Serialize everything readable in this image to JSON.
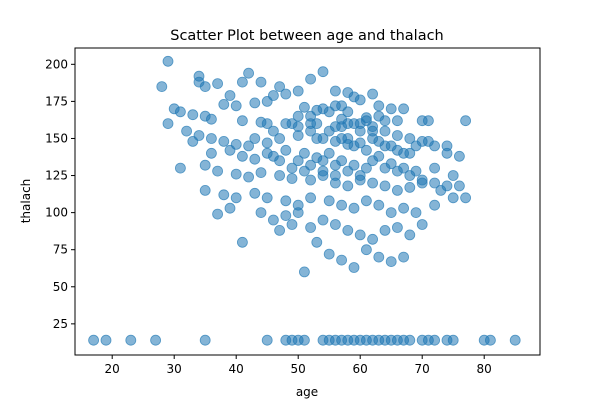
{
  "chart_data": {
    "type": "scatter",
    "title": "Scatter Plot between age and thalach",
    "xlabel": "age",
    "ylabel": "thalach",
    "xlim": [
      14,
      89
    ],
    "ylim": [
      4,
      211
    ],
    "xticks": [
      20,
      30,
      40,
      50,
      60,
      70,
      80
    ],
    "yticks": [
      25,
      50,
      75,
      100,
      125,
      150,
      175,
      200
    ],
    "grid": false,
    "marker_color": "#1f77b4",
    "marker_alpha": 0.55,
    "series": [
      {
        "points": [
          [
            29,
            202
          ],
          [
            42,
            194
          ],
          [
            54,
            195
          ],
          [
            28,
            185
          ],
          [
            34,
            192
          ],
          [
            34,
            188
          ],
          [
            35,
            185
          ],
          [
            37,
            187
          ],
          [
            41,
            188
          ],
          [
            44,
            188
          ],
          [
            47,
            185
          ],
          [
            52,
            190
          ],
          [
            45,
            175
          ],
          [
            46,
            179
          ],
          [
            48,
            180
          ],
          [
            50,
            182
          ],
          [
            56,
            182
          ],
          [
            58,
            181
          ],
          [
            59,
            178
          ],
          [
            60,
            176
          ],
          [
            62,
            180
          ],
          [
            63,
            172
          ],
          [
            65,
            170
          ],
          [
            67,
            170
          ],
          [
            38,
            173
          ],
          [
            39,
            179
          ],
          [
            40,
            172
          ],
          [
            43,
            174
          ],
          [
            51,
            171
          ],
          [
            53,
            169
          ],
          [
            55,
            168
          ],
          [
            57,
            172
          ],
          [
            30,
            170
          ],
          [
            31,
            168
          ],
          [
            33,
            166
          ],
          [
            35,
            165
          ],
          [
            36,
            163
          ],
          [
            41,
            162
          ],
          [
            44,
            161
          ],
          [
            49,
            160
          ],
          [
            53,
            160
          ],
          [
            57,
            163
          ],
          [
            61,
            164
          ],
          [
            64,
            162
          ],
          [
            66,
            162
          ],
          [
            70,
            162
          ],
          [
            71,
            162
          ],
          [
            77,
            162
          ],
          [
            29,
            160
          ],
          [
            32,
            155
          ],
          [
            34,
            152
          ],
          [
            36,
            150
          ],
          [
            38,
            148
          ],
          [
            40,
            146
          ],
          [
            42,
            145
          ],
          [
            45,
            147
          ],
          [
            47,
            150
          ],
          [
            50,
            152
          ],
          [
            52,
            155
          ],
          [
            54,
            150
          ],
          [
            56,
            148
          ],
          [
            58,
            146
          ],
          [
            60,
            147
          ],
          [
            62,
            150
          ],
          [
            64,
            145
          ],
          [
            66,
            142
          ],
          [
            68,
            140
          ],
          [
            69,
            145
          ],
          [
            71,
            148
          ],
          [
            74,
            145
          ],
          [
            33,
            148
          ],
          [
            36,
            140
          ],
          [
            39,
            142
          ],
          [
            41,
            138
          ],
          [
            43,
            136
          ],
          [
            46,
            138
          ],
          [
            48,
            142
          ],
          [
            51,
            140
          ],
          [
            53,
            137
          ],
          [
            55,
            140
          ],
          [
            57,
            135
          ],
          [
            59,
            132
          ],
          [
            61,
            130
          ],
          [
            63,
            138
          ],
          [
            65,
            133
          ],
          [
            67,
            130
          ],
          [
            69,
            128
          ],
          [
            72,
            130
          ],
          [
            75,
            125
          ],
          [
            31,
            130
          ],
          [
            35,
            132
          ],
          [
            37,
            128
          ],
          [
            40,
            126
          ],
          [
            42,
            124
          ],
          [
            44,
            127
          ],
          [
            47,
            125
          ],
          [
            49,
            123
          ],
          [
            52,
            122
          ],
          [
            54,
            125
          ],
          [
            56,
            120
          ],
          [
            58,
            118
          ],
          [
            60,
            122
          ],
          [
            62,
            120
          ],
          [
            64,
            118
          ],
          [
            66,
            115
          ],
          [
            68,
            117
          ],
          [
            70,
            120
          ],
          [
            73,
            115
          ],
          [
            76,
            118
          ],
          [
            35,
            115
          ],
          [
            38,
            112
          ],
          [
            40,
            110
          ],
          [
            43,
            113
          ],
          [
            45,
            110
          ],
          [
            48,
            108
          ],
          [
            50,
            105
          ],
          [
            52,
            110
          ],
          [
            55,
            108
          ],
          [
            57,
            105
          ],
          [
            59,
            103
          ],
          [
            61,
            108
          ],
          [
            63,
            105
          ],
          [
            65,
            100
          ],
          [
            67,
            103
          ],
          [
            69,
            100
          ],
          [
            72,
            105
          ],
          [
            75,
            110
          ],
          [
            77,
            110
          ],
          [
            37,
            99
          ],
          [
            39,
            103
          ],
          [
            41,
            80
          ],
          [
            44,
            100
          ],
          [
            46,
            95
          ],
          [
            48,
            98
          ],
          [
            50,
            100
          ],
          [
            52,
            90
          ],
          [
            54,
            95
          ],
          [
            56,
            92
          ],
          [
            58,
            88
          ],
          [
            60,
            85
          ],
          [
            62,
            82
          ],
          [
            64,
            88
          ],
          [
            66,
            90
          ],
          [
            68,
            85
          ],
          [
            70,
            92
          ],
          [
            51,
            60
          ],
          [
            55,
            72
          ],
          [
            57,
            68
          ],
          [
            59,
            63
          ],
          [
            61,
            75
          ],
          [
            63,
            70
          ],
          [
            65,
            67
          ],
          [
            67,
            70
          ],
          [
            53,
            80
          ],
          [
            47,
            88
          ],
          [
            49,
            92
          ],
          [
            45,
            160
          ],
          [
            50,
            165
          ],
          [
            52,
            160
          ],
          [
            56,
            158
          ],
          [
            58,
            160
          ],
          [
            60,
            155
          ],
          [
            62,
            158
          ],
          [
            64,
            155
          ],
          [
            66,
            152
          ],
          [
            68,
            150
          ],
          [
            70,
            148
          ],
          [
            72,
            145
          ],
          [
            74,
            140
          ],
          [
            76,
            138
          ],
          [
            54,
            135
          ],
          [
            56,
            132
          ],
          [
            58,
            128
          ],
          [
            60,
            125
          ],
          [
            62,
            135
          ],
          [
            64,
            130
          ],
          [
            66,
            128
          ],
          [
            68,
            125
          ],
          [
            70,
            122
          ],
          [
            72,
            120
          ],
          [
            74,
            118
          ],
          [
            57,
            150
          ],
          [
            59,
            145
          ],
          [
            61,
            142
          ],
          [
            63,
            148
          ],
          [
            65,
            145
          ],
          [
            67,
            140
          ],
          [
            50,
            135
          ],
          [
            52,
            132
          ],
          [
            54,
            128
          ],
          [
            56,
            125
          ],
          [
            58,
            150
          ],
          [
            45,
            140
          ],
          [
            47,
            135
          ],
          [
            49,
            130
          ],
          [
            51,
            128
          ],
          [
            53,
            150
          ],
          [
            55,
            155
          ],
          [
            57,
            158
          ],
          [
            59,
            160
          ],
          [
            61,
            162
          ],
          [
            63,
            165
          ],
          [
            43,
            150
          ],
          [
            46,
            155
          ],
          [
            48,
            160
          ],
          [
            50,
            158
          ],
          [
            52,
            165
          ],
          [
            54,
            170
          ],
          [
            56,
            172
          ],
          [
            58,
            168
          ],
          [
            60,
            160
          ],
          [
            62,
            155
          ],
          [
            17,
            14
          ],
          [
            19,
            14
          ],
          [
            23,
            14
          ],
          [
            27,
            14
          ],
          [
            35,
            14
          ],
          [
            45,
            14
          ],
          [
            48,
            14
          ],
          [
            49,
            14
          ],
          [
            50,
            14
          ],
          [
            51,
            14
          ],
          [
            54,
            14
          ],
          [
            55,
            14
          ],
          [
            56,
            14
          ],
          [
            57,
            14
          ],
          [
            58,
            14
          ],
          [
            59,
            14
          ],
          [
            60,
            14
          ],
          [
            61,
            14
          ],
          [
            62,
            14
          ],
          [
            63,
            14
          ],
          [
            64,
            14
          ],
          [
            65,
            14
          ],
          [
            66,
            14
          ],
          [
            67,
            14
          ],
          [
            68,
            14
          ],
          [
            70,
            14
          ],
          [
            71,
            14
          ],
          [
            72,
            14
          ],
          [
            74,
            14
          ],
          [
            75,
            14
          ],
          [
            80,
            14
          ],
          [
            81,
            14
          ],
          [
            85,
            14
          ]
        ]
      }
    ]
  }
}
